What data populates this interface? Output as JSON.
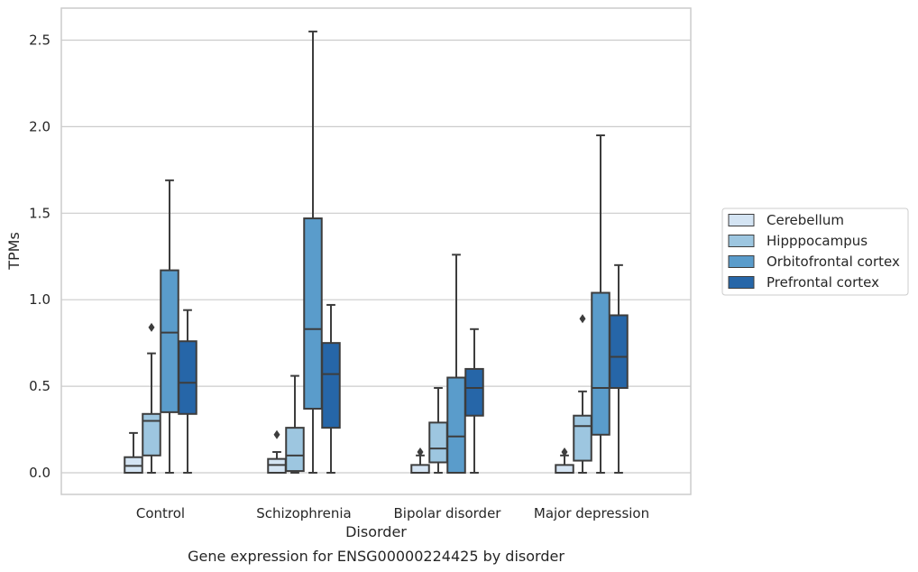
{
  "chart_data": {
    "type": "box",
    "title": "",
    "caption": "Gene expression for ENSG00000224425 by disorder",
    "xlabel": "Disorder",
    "ylabel": "TPMs",
    "ylim": [
      -0.12,
      2.68
    ],
    "yticks": [
      "0.0",
      "0.5",
      "1.0",
      "1.5",
      "2.0",
      "2.5"
    ],
    "ytick_values": [
      0,
      0.5,
      1.0,
      1.5,
      2.0,
      2.5
    ],
    "grid": "horizontal",
    "legend_position": "right",
    "categories": [
      "Control",
      "Schizophrenia",
      "Bipolar disorder",
      "Major depression"
    ],
    "series": [
      {
        "name": "Cerebellum",
        "color": "#d4e4f3",
        "boxes": [
          {
            "whisker_low": 0.0,
            "q1": 0.0,
            "median": 0.04,
            "q3": 0.09,
            "whisker_high": 0.23,
            "outliers": []
          },
          {
            "whisker_low": 0.0,
            "q1": 0.0,
            "median": 0.045,
            "q3": 0.08,
            "whisker_high": 0.12,
            "outliers": [
              0.22
            ]
          },
          {
            "whisker_low": 0.0,
            "q1": 0.0,
            "median": 0.0,
            "q3": 0.045,
            "whisker_high": 0.1,
            "outliers": [
              0.12
            ]
          },
          {
            "whisker_low": 0.0,
            "q1": 0.0,
            "median": 0.0,
            "q3": 0.045,
            "whisker_high": 0.1,
            "outliers": [
              0.12
            ]
          }
        ]
      },
      {
        "name": "Hipppocampus",
        "color": "#9dc6e0",
        "boxes": [
          {
            "whisker_low": 0.0,
            "q1": 0.1,
            "median": 0.3,
            "q3": 0.34,
            "whisker_high": 0.69,
            "outliers": [
              0.84
            ]
          },
          {
            "whisker_low": 0.0,
            "q1": 0.01,
            "median": 0.1,
            "q3": 0.26,
            "whisker_high": 0.56,
            "outliers": []
          },
          {
            "whisker_low": 0.0,
            "q1": 0.06,
            "median": 0.14,
            "q3": 0.29,
            "whisker_high": 0.49,
            "outliers": []
          },
          {
            "whisker_low": 0.0,
            "q1": 0.07,
            "median": 0.27,
            "q3": 0.33,
            "whisker_high": 0.47,
            "outliers": [
              0.89
            ]
          }
        ]
      },
      {
        "name": "Orbitofrontal cortex",
        "color": "#5a9ccb",
        "boxes": [
          {
            "whisker_low": 0.0,
            "q1": 0.35,
            "median": 0.81,
            "q3": 1.17,
            "whisker_high": 1.69,
            "outliers": []
          },
          {
            "whisker_low": 0.0,
            "q1": 0.37,
            "median": 0.83,
            "q3": 1.47,
            "whisker_high": 2.55,
            "outliers": []
          },
          {
            "whisker_low": 0.0,
            "q1": 0.0,
            "median": 0.21,
            "q3": 0.55,
            "whisker_high": 1.26,
            "outliers": []
          },
          {
            "whisker_low": 0.0,
            "q1": 0.22,
            "median": 0.49,
            "q3": 1.04,
            "whisker_high": 1.95,
            "outliers": []
          }
        ]
      },
      {
        "name": "Prefrontal cortex",
        "color": "#2666a8",
        "boxes": [
          {
            "whisker_low": 0.0,
            "q1": 0.34,
            "median": 0.52,
            "q3": 0.76,
            "whisker_high": 0.94,
            "outliers": []
          },
          {
            "whisker_low": 0.0,
            "q1": 0.26,
            "median": 0.57,
            "q3": 0.75,
            "whisker_high": 0.97,
            "outliers": []
          },
          {
            "whisker_low": 0.0,
            "q1": 0.33,
            "median": 0.49,
            "q3": 0.6,
            "whisker_high": 0.83,
            "outliers": []
          },
          {
            "whisker_low": 0.0,
            "q1": 0.49,
            "median": 0.67,
            "q3": 0.91,
            "whisker_high": 1.2,
            "outliers": []
          }
        ]
      }
    ]
  }
}
